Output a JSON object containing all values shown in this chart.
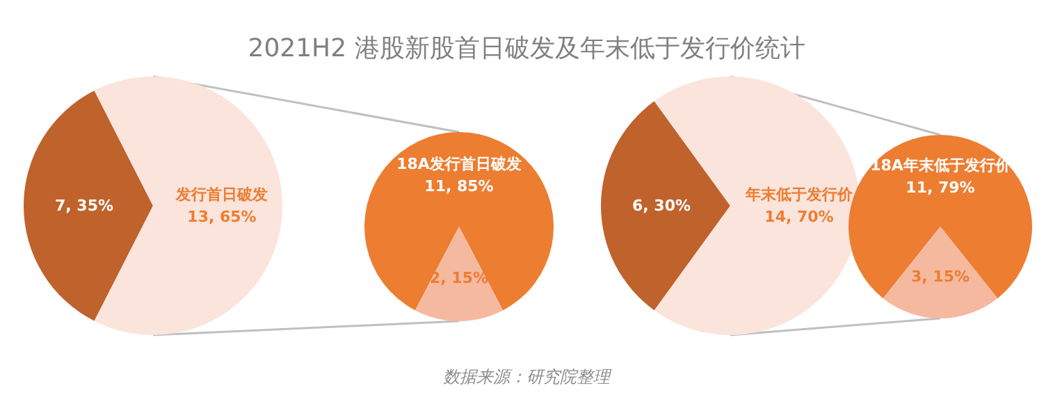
{
  "chart_data": [
    {
      "type": "pie",
      "title": "2021H2 港股新股首日破发及年末低于发行价统计",
      "annotations": [
        "数据来源：研究院整理"
      ],
      "categories": [
        null,
        "发行首日破发"
      ],
      "values": [
        7,
        13
      ],
      "colors": [
        "#c0622b",
        "#fbe4dc"
      ],
      "value_labels": [
        "7, 35%",
        "13, 65%"
      ]
    },
    {
      "type": "pie",
      "categories": [
        "18A发行首日破发",
        null
      ],
      "values": [
        11,
        2
      ],
      "colors": [
        "#ed7d31",
        "#f5b9a0"
      ],
      "value_labels": [
        "11, 85%",
        "2, 15%"
      ]
    },
    {
      "type": "pie",
      "categories": [
        null,
        "年末低于发行价"
      ],
      "values": [
        6,
        14
      ],
      "colors": [
        "#c0622b",
        "#fbe4dc"
      ],
      "value_labels": [
        "6, 30%",
        "14, 70%"
      ]
    },
    {
      "type": "pie",
      "categories": [
        "18A年末低于发行价",
        null
      ],
      "values": [
        11,
        3
      ],
      "colors": [
        "#ed7d31",
        "#f5b9a0"
      ],
      "value_labels": [
        "11, 79%",
        "3, 15%"
      ]
    }
  ]
}
